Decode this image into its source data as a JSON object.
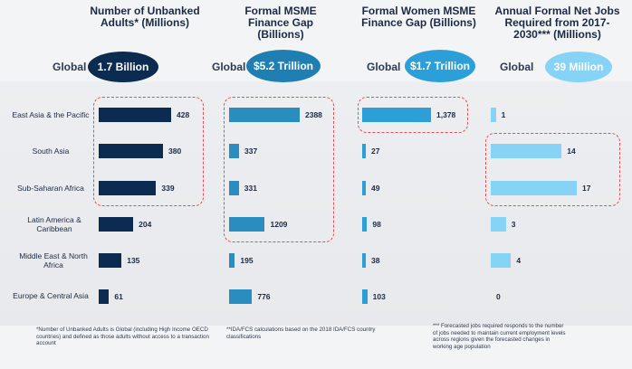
{
  "colors": {
    "col1": "#0b2b50",
    "col2": "#2a8cbf",
    "col3": "#2c9fd8",
    "col4": "#86d3f5",
    "highlight": "#e05050"
  },
  "global_label": "Global",
  "columns": [
    {
      "title": "Number of Unbanked Adults* (Millions)",
      "global_value": "1.7 Billion"
    },
    {
      "title": "Formal MSME Finance Gap (Billions)",
      "global_value": "$5.2 Trillion"
    },
    {
      "title": "Formal Women MSME Finance Gap (Billions)",
      "global_value": "$1.7 Trillion"
    },
    {
      "title": "Annual Formal Net Jobs Required from 2017-2030*** (Millions)",
      "global_value": "39 Million"
    }
  ],
  "footnotes": [
    "*Number of Unbanked Adults is Global (including High Income OECD countries) and defined as those adults without access to a transaction account",
    "**IDA/FCS calculations based on the 2018 IDA/FCS country classifications",
    "*** Forecasted jobs required responds to the number of jobs needed to maintain current employment levels across regions given the forecasted changes in working age population"
  ],
  "chart_data": {
    "type": "bar",
    "categories": [
      "East Asia & the Pacific",
      "South Asia",
      "Sub-Saharan Africa",
      "Latin America & Caribbean",
      "Middle East & North Africa",
      "Europe & Central Asia"
    ],
    "series": [
      {
        "name": "Number of Unbanked Adults* (Millions)",
        "values": [
          428,
          380,
          339,
          204,
          135,
          61
        ],
        "labels": [
          "428",
          "380",
          "339",
          "204",
          "135",
          "61"
        ]
      },
      {
        "name": "Formal MSME Finance Gap (Billions)",
        "values": [
          2388,
          337,
          331,
          1209,
          195,
          776
        ],
        "labels": [
          "2388",
          "337",
          "331",
          "1209",
          "195",
          "776"
        ]
      },
      {
        "name": "Formal Women MSME Finance Gap (Billions)",
        "values": [
          1378,
          27,
          49,
          98,
          38,
          103
        ],
        "labels": [
          "1,378",
          "27",
          "49",
          "98",
          "38",
          "103"
        ]
      },
      {
        "name": "Annual Formal Net Jobs Required from 2017-2030*** (Millions)",
        "values": [
          1,
          14,
          17,
          3,
          4,
          0
        ],
        "labels": [
          "1",
          "14",
          "17",
          "3",
          "4",
          "0"
        ]
      }
    ],
    "highlighted": [
      [
        0,
        1,
        2
      ],
      [
        0,
        3
      ],
      [
        0
      ],
      [
        1,
        2
      ]
    ]
  }
}
